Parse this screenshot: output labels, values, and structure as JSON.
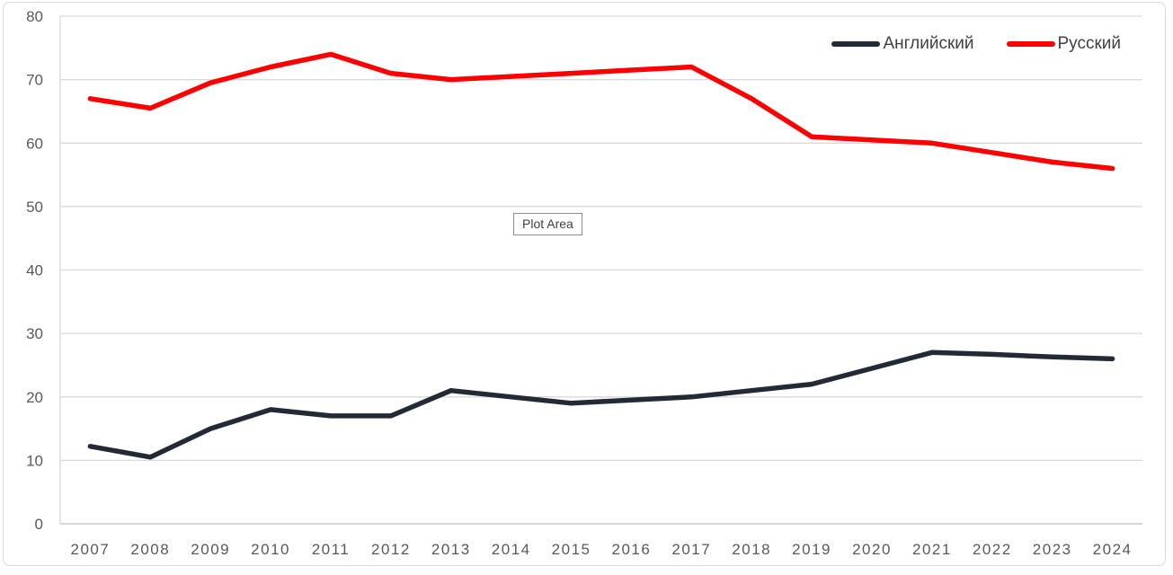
{
  "tooltip": {
    "label": "Plot Area"
  },
  "chart_data": {
    "type": "line",
    "title": "",
    "xlabel": "",
    "ylabel": "",
    "categories": [
      "2007",
      "2008",
      "2009",
      "2010",
      "2011",
      "2012",
      "2013",
      "2014",
      "2015",
      "2016",
      "2017",
      "2018",
      "2019",
      "2020",
      "2021",
      "2022",
      "2023",
      "2024"
    ],
    "series": [
      {
        "name": "Английский",
        "color": "#222B35",
        "values": [
          12.2,
          10.5,
          15,
          18,
          17,
          17,
          21,
          20,
          19,
          19.5,
          20,
          21,
          22,
          24.5,
          27,
          26.7,
          26.3,
          26
        ]
      },
      {
        "name": "Русский",
        "color": "#FF0000",
        "values": [
          67,
          65.5,
          69.5,
          72,
          74,
          71,
          70,
          70.5,
          71,
          71.5,
          72,
          67,
          61,
          60.5,
          60,
          58.5,
          57,
          56
        ]
      }
    ],
    "ylim": [
      0,
      80
    ],
    "yticks": [
      0,
      10,
      20,
      30,
      40,
      50,
      60,
      70,
      80
    ],
    "grid": true,
    "legend_position": "top-right",
    "colors": {
      "gridline": "#D9D9D9",
      "axis_line": "#BFBFBF",
      "tick_label": "#595959",
      "legend_text": "#404040"
    }
  }
}
